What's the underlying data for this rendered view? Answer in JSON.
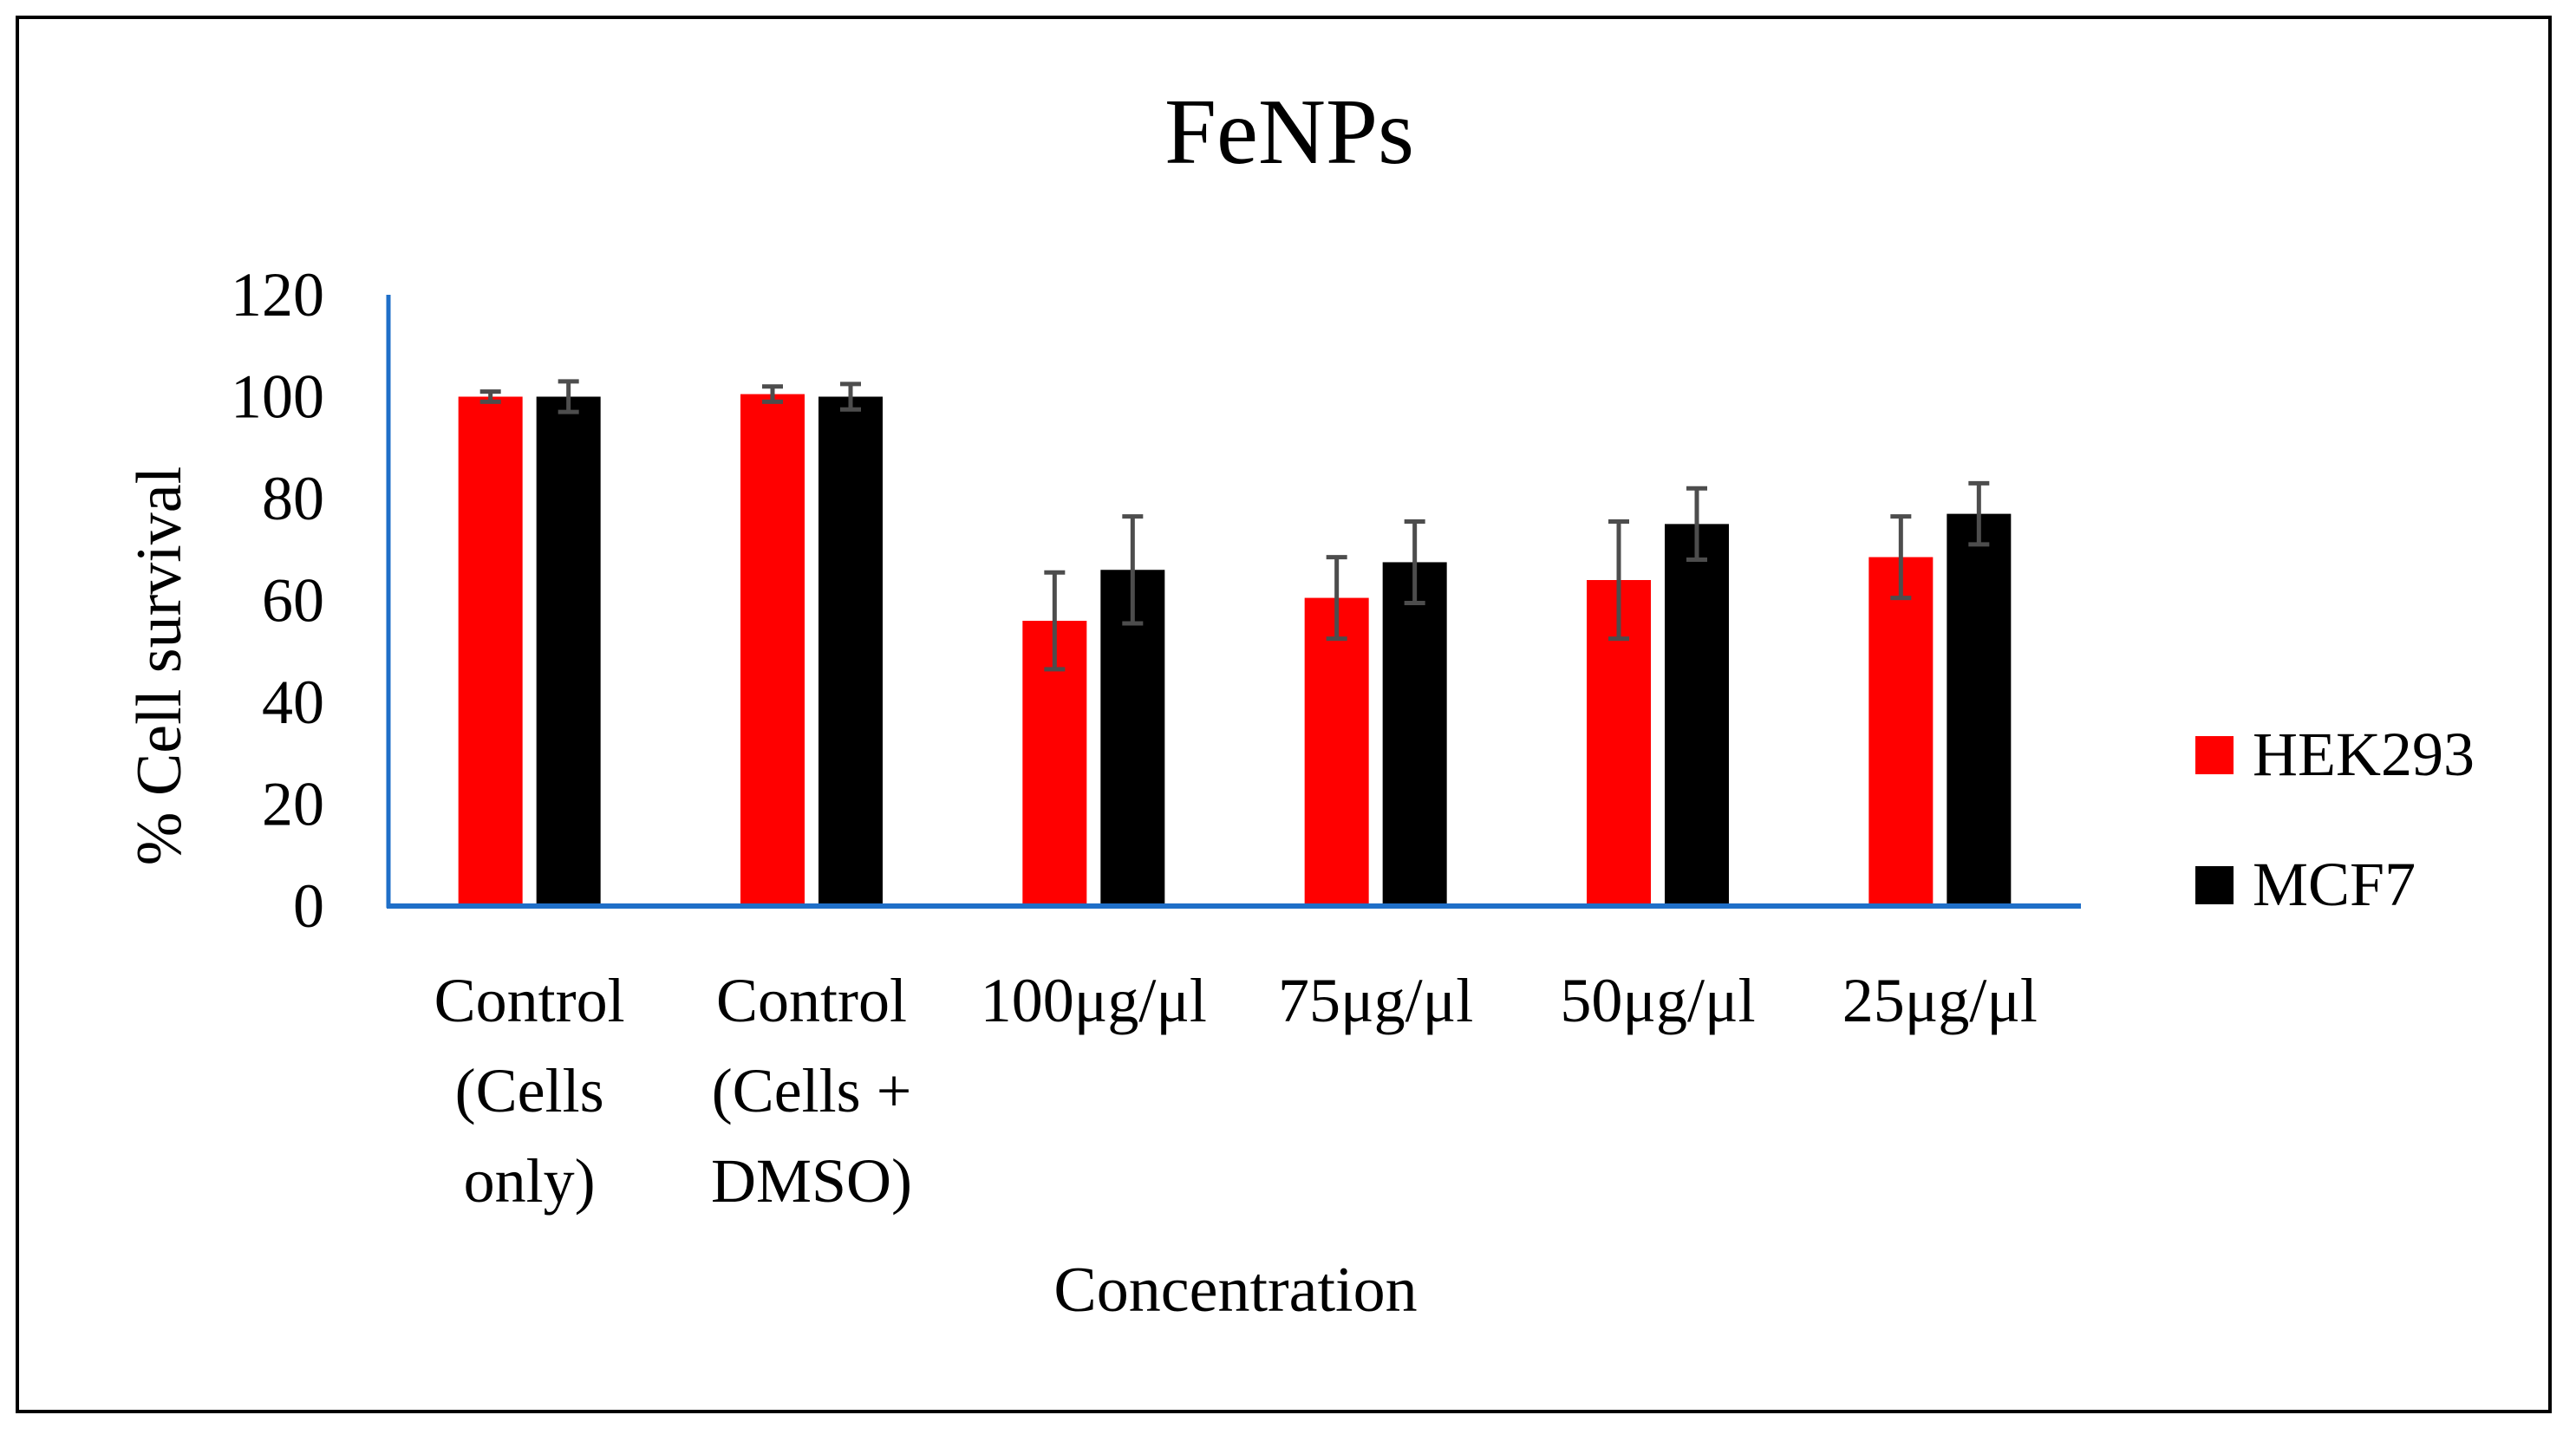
{
  "chart_data": {
    "type": "bar",
    "title": "FeNPs",
    "xlabel": "Concentration",
    "ylabel": "% Cell survival",
    "ylim": [
      0,
      120
    ],
    "yticks": [
      0,
      20,
      40,
      60,
      80,
      100,
      120
    ],
    "grid": false,
    "legend_position": "right",
    "categories": [
      [
        "Control",
        "(Cells",
        "only)"
      ],
      [
        "Control",
        "(Cells +",
        "DMSO)"
      ],
      [
        "100μg/μl"
      ],
      [
        "75μg/μl"
      ],
      [
        "50μg/μl"
      ],
      [
        "25μg/μl"
      ]
    ],
    "series": [
      {
        "name": "HEK293",
        "color": "#ff0000",
        "values": [
          100,
          100.5,
          56,
          60.5,
          64,
          68.5
        ],
        "errors": [
          1,
          1.5,
          9.5,
          8,
          11.5,
          8
        ]
      },
      {
        "name": "MCF7",
        "color": "#000000",
        "values": [
          100,
          100,
          66,
          67.5,
          75,
          77
        ],
        "errors": [
          3,
          2.5,
          10.5,
          8,
          7,
          6
        ]
      }
    ],
    "axis_color": "#1f6fc8",
    "error_bar_color": "#4d4d4d"
  }
}
